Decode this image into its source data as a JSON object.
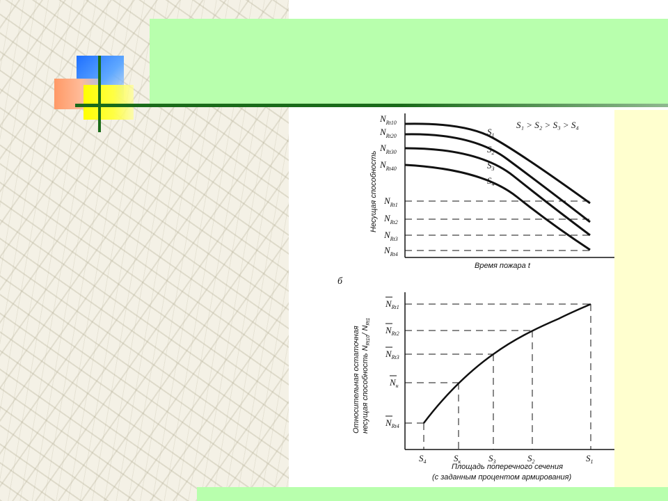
{
  "top_chart": {
    "ylabel": "Несущая способность",
    "xlabel": "Время пожара t",
    "inequality": "S₁ > S₂ > S₃ > S₄",
    "y_start_labels": [
      "N",
      "N",
      "N",
      "N"
    ],
    "y_start_subs": [
      "Rt10",
      "Rt20",
      "Rt30",
      "Rt40"
    ],
    "y_end_subs": [
      "Rt1",
      "Rt2",
      "Rt3",
      "Rt4"
    ],
    "curve_labels": [
      "S",
      "S",
      "S",
      "S"
    ],
    "curve_subs": [
      "1",
      "2",
      "3",
      "4"
    ]
  },
  "panel_letter": "б",
  "bottom_chart": {
    "ylabel_line1": "Относительная остаточная",
    "ylabel_line2": "несущая способность N",
    "ylabel_sub": "Rt10",
    "ylabel_tail": "/ N",
    "ylabel_tail_sub": "Rt1",
    "xlabel_line1": "Площадь поперечного сечения",
    "xlabel_line2": "(с заданным процентом армирования)",
    "y_labels": [
      "N",
      "N",
      "N",
      "N",
      "N"
    ],
    "y_subs": [
      "Rt1",
      "Rt2",
      "Rt3",
      "н",
      "Rt4"
    ],
    "x_labels": [
      "S",
      "S",
      "S",
      "S",
      "S"
    ],
    "x_subs": [
      "4",
      "к",
      "3",
      "2",
      "1"
    ]
  }
}
